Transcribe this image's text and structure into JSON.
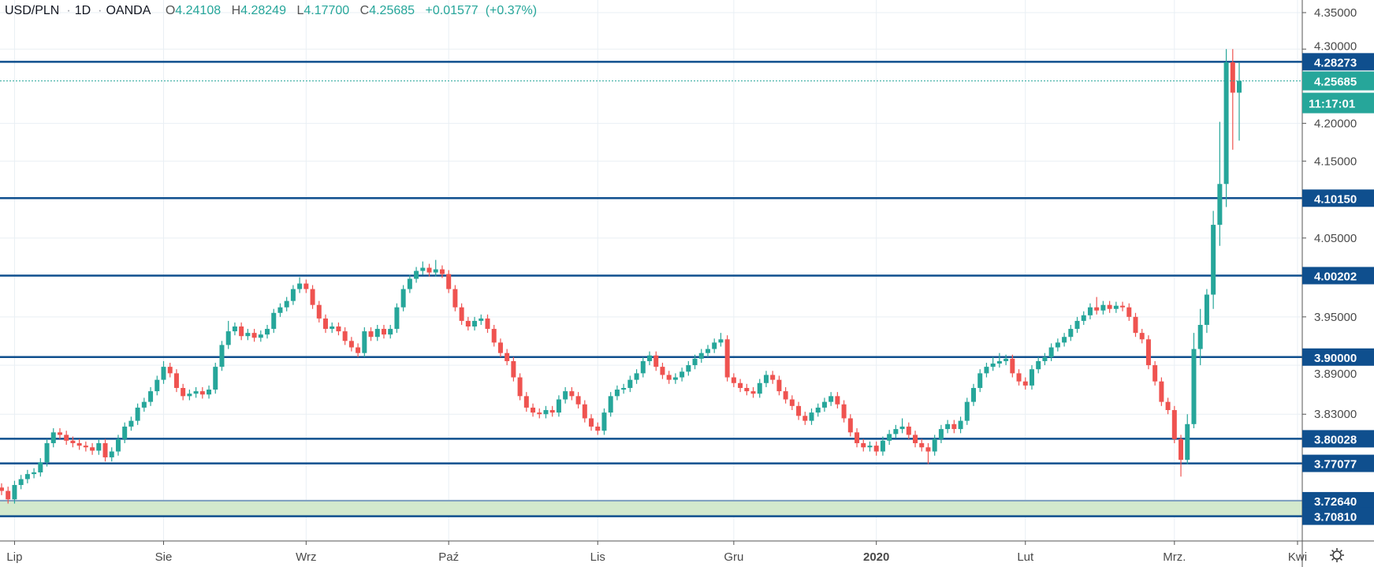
{
  "header": {
    "symbol": "USD/PLN",
    "interval": "1D",
    "exchange": "OANDA",
    "open_label": "O",
    "open": "4.24108",
    "high_label": "H",
    "high": "4.28249",
    "low_label": "L",
    "low": "4.17700",
    "close_label": "C",
    "close": "4.25685",
    "change": "+0.01577",
    "change_pct": "(+0.37%)"
  },
  "colors": {
    "up": "#26a69a",
    "down": "#ef5350",
    "level": "#0f4f8e",
    "zone": "#d3e9cd",
    "grid": "#e9eff4"
  },
  "chart_data": {
    "type": "candlestick",
    "title": "USD/PLN 1D OANDA",
    "scale": "log",
    "ylim": [
      3.68,
      4.37
    ],
    "y_ticks": [
      "4.35000",
      "4.30000",
      "4.20000",
      "4.15000",
      "4.05000",
      "3.95000",
      "3.89000",
      "3.83000"
    ],
    "x_ticks": [
      {
        "label": "Lip",
        "index": 2
      },
      {
        "label": "Sie",
        "index": 25
      },
      {
        "label": "Wrz",
        "index": 47
      },
      {
        "label": "Paź",
        "index": 69
      },
      {
        "label": "Lis",
        "index": 92
      },
      {
        "label": "Gru",
        "index": 113
      },
      {
        "label": "2020",
        "index": 135,
        "bold": true
      },
      {
        "label": "Lut",
        "index": 158
      },
      {
        "label": "Mrz.",
        "index": 181
      },
      {
        "label": "Kwi",
        "index": 200
      }
    ],
    "levels": [
      {
        "label": "4.28273",
        "value": 4.28273
      },
      {
        "label": "4.10150",
        "value": 4.1015
      },
      {
        "label": "4.00202",
        "value": 4.00202
      },
      {
        "label": "3.90000",
        "value": 3.9
      },
      {
        "label": "3.80028",
        "value": 3.80028
      },
      {
        "label": "3.77077",
        "value": 3.77077
      },
      {
        "label": "3.72640",
        "value": 3.7264
      },
      {
        "label": "3.70810",
        "value": 3.7081
      }
    ],
    "zone": [
      3.7081,
      3.7264
    ],
    "last_price": {
      "label": "4.25685",
      "value": 4.25685,
      "countdown": "11:17:01"
    },
    "ohlc": [
      [
        3.742,
        3.747,
        3.733,
        3.738
      ],
      [
        3.738,
        3.743,
        3.723,
        3.728
      ],
      [
        3.728,
        3.75,
        3.723,
        3.745
      ],
      [
        3.745,
        3.757,
        3.74,
        3.752
      ],
      [
        3.752,
        3.763,
        3.747,
        3.758
      ],
      [
        3.758,
        3.765,
        3.753,
        3.76
      ],
      [
        3.76,
        3.777,
        3.755,
        3.772
      ],
      [
        3.772,
        3.8,
        3.767,
        3.795
      ],
      [
        3.795,
        3.813,
        3.79,
        3.808
      ],
      [
        3.808,
        3.813,
        3.8,
        3.805
      ],
      [
        3.805,
        3.81,
        3.793,
        3.798
      ],
      [
        3.798,
        3.803,
        3.79,
        3.795
      ],
      [
        3.795,
        3.8,
        3.787,
        3.792
      ],
      [
        3.792,
        3.797,
        3.785,
        3.79
      ],
      [
        3.79,
        3.795,
        3.781,
        3.786
      ],
      [
        3.786,
        3.8,
        3.781,
        3.795
      ],
      [
        3.795,
        3.8,
        3.773,
        3.778
      ],
      [
        3.778,
        3.79,
        3.773,
        3.785
      ],
      [
        3.785,
        3.805,
        3.78,
        3.8
      ],
      [
        3.8,
        3.82,
        3.795,
        3.815
      ],
      [
        3.815,
        3.827,
        3.81,
        3.822
      ],
      [
        3.822,
        3.843,
        3.817,
        3.838
      ],
      [
        3.838,
        3.85,
        3.833,
        3.845
      ],
      [
        3.845,
        3.863,
        3.84,
        3.858
      ],
      [
        3.858,
        3.877,
        3.853,
        3.872
      ],
      [
        3.872,
        3.895,
        3.867,
        3.888
      ],
      [
        3.888,
        3.893,
        3.875,
        3.88
      ],
      [
        3.88,
        3.885,
        3.857,
        3.862
      ],
      [
        3.862,
        3.867,
        3.847,
        3.852
      ],
      [
        3.852,
        3.86,
        3.847,
        3.855
      ],
      [
        3.855,
        3.863,
        3.85,
        3.858
      ],
      [
        3.858,
        3.863,
        3.849,
        3.854
      ],
      [
        3.854,
        3.865,
        3.849,
        3.86
      ],
      [
        3.86,
        3.893,
        3.855,
        3.888
      ],
      [
        3.888,
        3.92,
        3.883,
        3.915
      ],
      [
        3.915,
        3.945,
        3.91,
        3.932
      ],
      [
        3.932,
        3.943,
        3.927,
        3.938
      ],
      [
        3.938,
        3.943,
        3.921,
        3.926
      ],
      [
        3.926,
        3.935,
        3.921,
        3.93
      ],
      [
        3.93,
        3.935,
        3.919,
        3.924
      ],
      [
        3.924,
        3.933,
        3.919,
        3.928
      ],
      [
        3.928,
        3.94,
        3.923,
        3.935
      ],
      [
        3.935,
        3.96,
        3.93,
        3.955
      ],
      [
        3.955,
        3.967,
        3.95,
        3.962
      ],
      [
        3.962,
        3.975,
        3.957,
        3.97
      ],
      [
        3.97,
        3.99,
        3.965,
        3.985
      ],
      [
        3.985,
        4.0,
        3.98,
        3.992
      ],
      [
        3.992,
        3.997,
        3.98,
        3.985
      ],
      [
        3.985,
        3.99,
        3.96,
        3.965
      ],
      [
        3.965,
        3.97,
        3.943,
        3.948
      ],
      [
        3.948,
        3.953,
        3.93,
        3.935
      ],
      [
        3.935,
        3.943,
        3.93,
        3.938
      ],
      [
        3.938,
        3.943,
        3.927,
        3.932
      ],
      [
        3.932,
        3.937,
        3.915,
        3.92
      ],
      [
        3.92,
        3.925,
        3.907,
        3.912
      ],
      [
        3.912,
        3.917,
        3.9,
        3.905
      ],
      [
        3.905,
        3.937,
        3.9,
        3.932
      ],
      [
        3.932,
        3.937,
        3.92,
        3.925
      ],
      [
        3.925,
        3.94,
        3.92,
        3.935
      ],
      [
        3.935,
        3.94,
        3.923,
        3.928
      ],
      [
        3.928,
        3.94,
        3.923,
        3.935
      ],
      [
        3.935,
        3.967,
        3.93,
        3.962
      ],
      [
        3.962,
        3.99,
        3.957,
        3.985
      ],
      [
        3.985,
        4.003,
        3.98,
        3.998
      ],
      [
        3.998,
        4.013,
        3.993,
        4.008
      ],
      [
        4.008,
        4.02,
        4.003,
        4.012
      ],
      [
        4.012,
        4.017,
        4.001,
        4.006
      ],
      [
        4.006,
        4.022,
        4.001,
        4.01
      ],
      [
        4.01,
        4.015,
        3.999,
        4.004
      ],
      [
        4.004,
        4.009,
        3.98,
        3.985
      ],
      [
        3.985,
        3.99,
        3.957,
        3.962
      ],
      [
        3.962,
        3.967,
        3.94,
        3.945
      ],
      [
        3.945,
        3.95,
        3.933,
        3.938
      ],
      [
        3.938,
        3.95,
        3.933,
        3.945
      ],
      [
        3.945,
        3.953,
        3.94,
        3.948
      ],
      [
        3.948,
        3.953,
        3.93,
        3.935
      ],
      [
        3.935,
        3.94,
        3.913,
        3.918
      ],
      [
        3.918,
        3.923,
        3.9,
        3.905
      ],
      [
        3.905,
        3.91,
        3.89,
        3.895
      ],
      [
        3.895,
        3.9,
        3.87,
        3.875
      ],
      [
        3.875,
        3.88,
        3.847,
        3.852
      ],
      [
        3.852,
        3.857,
        3.833,
        3.838
      ],
      [
        3.838,
        3.843,
        3.827,
        3.832
      ],
      [
        3.832,
        3.837,
        3.825,
        3.83
      ],
      [
        3.83,
        3.84,
        3.825,
        3.835
      ],
      [
        3.835,
        3.84,
        3.827,
        3.832
      ],
      [
        3.832,
        3.853,
        3.827,
        3.848
      ],
      [
        3.848,
        3.863,
        3.843,
        3.858
      ],
      [
        3.858,
        3.863,
        3.847,
        3.852
      ],
      [
        3.852,
        3.857,
        3.837,
        3.842
      ],
      [
        3.842,
        3.847,
        3.82,
        3.825
      ],
      [
        3.825,
        3.83,
        3.81,
        3.815
      ],
      [
        3.815,
        3.82,
        3.805,
        3.81
      ],
      [
        3.81,
        3.837,
        3.805,
        3.832
      ],
      [
        3.832,
        3.857,
        3.827,
        3.852
      ],
      [
        3.852,
        3.865,
        3.847,
        3.86
      ],
      [
        3.86,
        3.867,
        3.855,
        3.862
      ],
      [
        3.862,
        3.877,
        3.857,
        3.872
      ],
      [
        3.872,
        3.885,
        3.867,
        3.88
      ],
      [
        3.88,
        3.9,
        3.875,
        3.895
      ],
      [
        3.895,
        3.907,
        3.89,
        3.902
      ],
      [
        3.902,
        3.907,
        3.883,
        3.888
      ],
      [
        3.888,
        3.893,
        3.873,
        3.878
      ],
      [
        3.878,
        3.883,
        3.867,
        3.872
      ],
      [
        3.872,
        3.88,
        3.867,
        3.875
      ],
      [
        3.875,
        3.887,
        3.87,
        3.882
      ],
      [
        3.882,
        3.895,
        3.877,
        3.89
      ],
      [
        3.89,
        3.903,
        3.885,
        3.898
      ],
      [
        3.898,
        3.91,
        3.893,
        3.905
      ],
      [
        3.905,
        3.915,
        3.9,
        3.91
      ],
      [
        3.91,
        3.923,
        3.905,
        3.918
      ],
      [
        3.918,
        3.93,
        3.913,
        3.922
      ],
      [
        3.922,
        3.927,
        3.87,
        3.875
      ],
      [
        3.875,
        3.88,
        3.863,
        3.868
      ],
      [
        3.868,
        3.873,
        3.857,
        3.862
      ],
      [
        3.862,
        3.867,
        3.853,
        3.858
      ],
      [
        3.858,
        3.863,
        3.85,
        3.855
      ],
      [
        3.855,
        3.873,
        3.85,
        3.868
      ],
      [
        3.868,
        3.883,
        3.863,
        3.878
      ],
      [
        3.878,
        3.883,
        3.867,
        3.872
      ],
      [
        3.872,
        3.877,
        3.853,
        3.858
      ],
      [
        3.858,
        3.863,
        3.843,
        3.848
      ],
      [
        3.848,
        3.853,
        3.835,
        3.84
      ],
      [
        3.84,
        3.845,
        3.823,
        3.828
      ],
      [
        3.828,
        3.833,
        3.817,
        3.822
      ],
      [
        3.822,
        3.837,
        3.817,
        3.832
      ],
      [
        3.832,
        3.843,
        3.827,
        3.838
      ],
      [
        3.838,
        3.85,
        3.833,
        3.845
      ],
      [
        3.845,
        3.857,
        3.84,
        3.852
      ],
      [
        3.852,
        3.857,
        3.837,
        3.842
      ],
      [
        3.842,
        3.847,
        3.82,
        3.825
      ],
      [
        3.825,
        3.83,
        3.803,
        3.808
      ],
      [
        3.808,
        3.813,
        3.79,
        3.795
      ],
      [
        3.795,
        3.8,
        3.785,
        3.79
      ],
      [
        3.79,
        3.797,
        3.785,
        3.792
      ],
      [
        3.792,
        3.797,
        3.78,
        3.785
      ],
      [
        3.785,
        3.803,
        3.78,
        3.798
      ],
      [
        3.798,
        3.811,
        3.793,
        3.806
      ],
      [
        3.806,
        3.817,
        3.801,
        3.812
      ],
      [
        3.812,
        3.825,
        3.807,
        3.815
      ],
      [
        3.815,
        3.82,
        3.8,
        3.805
      ],
      [
        3.805,
        3.81,
        3.79,
        3.795
      ],
      [
        3.795,
        3.8,
        3.785,
        3.79
      ],
      [
        3.79,
        3.795,
        3.77,
        3.785
      ],
      [
        3.785,
        3.805,
        3.78,
        3.8
      ],
      [
        3.8,
        3.817,
        3.795,
        3.812
      ],
      [
        3.812,
        3.823,
        3.807,
        3.818
      ],
      [
        3.818,
        3.823,
        3.807,
        3.812
      ],
      [
        3.812,
        3.827,
        3.807,
        3.822
      ],
      [
        3.822,
        3.85,
        3.817,
        3.845
      ],
      [
        3.845,
        3.867,
        3.84,
        3.862
      ],
      [
        3.862,
        3.885,
        3.857,
        3.88
      ],
      [
        3.88,
        3.893,
        3.875,
        3.888
      ],
      [
        3.888,
        3.9,
        3.883,
        3.892
      ],
      [
        3.892,
        3.905,
        3.887,
        3.895
      ],
      [
        3.895,
        3.903,
        3.89,
        3.898
      ],
      [
        3.898,
        3.903,
        3.875,
        3.88
      ],
      [
        3.88,
        3.885,
        3.865,
        3.87
      ],
      [
        3.87,
        3.875,
        3.86,
        3.865
      ],
      [
        3.865,
        3.89,
        3.86,
        3.885
      ],
      [
        3.885,
        3.9,
        3.88,
        3.895
      ],
      [
        3.895,
        3.905,
        3.89,
        3.9
      ],
      [
        3.9,
        3.917,
        3.895,
        3.912
      ],
      [
        3.912,
        3.923,
        3.907,
        3.918
      ],
      [
        3.918,
        3.93,
        3.913,
        3.925
      ],
      [
        3.925,
        3.94,
        3.92,
        3.935
      ],
      [
        3.935,
        3.95,
        3.93,
        3.945
      ],
      [
        3.945,
        3.957,
        3.94,
        3.952
      ],
      [
        3.952,
        3.967,
        3.947,
        3.962
      ],
      [
        3.962,
        3.975,
        3.953,
        3.958
      ],
      [
        3.958,
        3.97,
        3.953,
        3.965
      ],
      [
        3.965,
        3.97,
        3.955,
        3.96
      ],
      [
        3.96,
        3.969,
        3.955,
        3.964
      ],
      [
        3.964,
        3.969,
        3.957,
        3.962
      ],
      [
        3.962,
        3.967,
        3.945,
        3.95
      ],
      [
        3.95,
        3.955,
        3.925,
        3.93
      ],
      [
        3.93,
        3.935,
        3.917,
        3.922
      ],
      [
        3.922,
        3.927,
        3.885,
        3.89
      ],
      [
        3.89,
        3.895,
        3.865,
        3.87
      ],
      [
        3.87,
        3.875,
        3.84,
        3.845
      ],
      [
        3.845,
        3.85,
        3.83,
        3.835
      ],
      [
        3.835,
        3.84,
        3.795,
        3.8
      ],
      [
        3.8,
        3.805,
        3.755,
        3.775
      ],
      [
        3.775,
        3.83,
        3.77,
        3.818
      ],
      [
        3.818,
        3.93,
        3.813,
        3.91
      ],
      [
        3.91,
        3.96,
        3.89,
        3.94
      ],
      [
        3.94,
        3.985,
        3.93,
        3.978
      ],
      [
        3.978,
        4.085,
        3.96,
        4.067
      ],
      [
        4.067,
        4.202,
        4.04,
        4.12
      ],
      [
        4.12,
        4.3,
        4.09,
        4.282
      ],
      [
        4.282,
        4.3,
        4.165,
        4.241
      ],
      [
        4.241,
        4.282,
        4.177,
        4.257
      ]
    ]
  }
}
